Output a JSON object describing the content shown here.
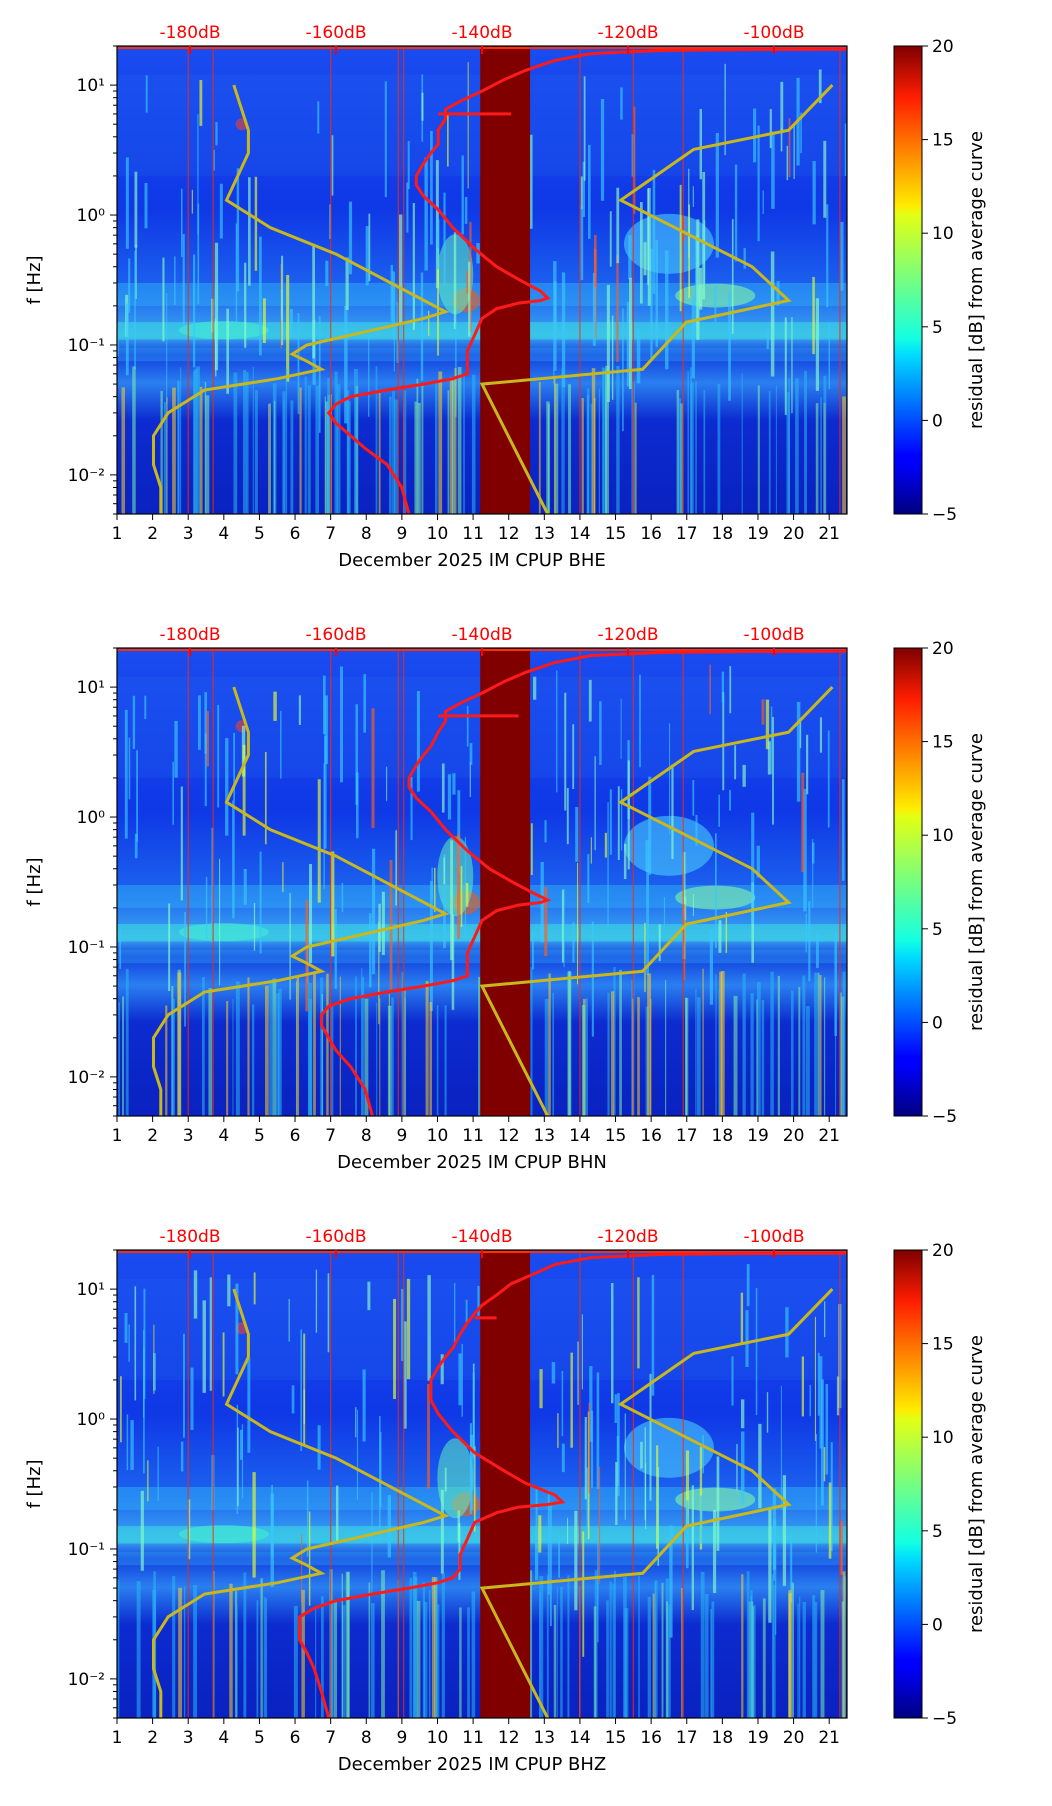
{
  "figure": {
    "kind": "spectrogram residual plots with PSD overlay"
  },
  "colors": {
    "db_axis": "#ff0000",
    "psd_curve": "#ff1a1a",
    "model_curve": "#c8b81e",
    "gap_fill": "#800000",
    "background_low": "#0a2ad8"
  },
  "colorbar": {
    "label": "residual [dB] from average curve",
    "ticks": [
      "20",
      "15",
      "10",
      "5",
      "0",
      "−5"
    ],
    "tick_values": [
      20,
      15,
      10,
      5,
      0,
      -5
    ],
    "range": [
      -5,
      20
    ],
    "colormap": "jet"
  },
  "chart_data": [
    {
      "type": "heatmap",
      "channel": "BHE",
      "xlabel": "December 2025 IM CPUP  BHE",
      "ylabel": "f [Hz]",
      "x_ticks": [
        "1",
        "2",
        "3",
        "4",
        "5",
        "6",
        "7",
        "8",
        "9",
        "10",
        "11",
        "12",
        "13",
        "14",
        "15",
        "16",
        "17",
        "18",
        "19",
        "20",
        "21"
      ],
      "x_range": [
        1,
        21.5
      ],
      "y_ticks": [
        "10¹",
        "10⁰",
        "10⁻¹",
        "10⁻²"
      ],
      "y_tick_exponents": [
        1,
        0,
        -1,
        -2
      ],
      "y_range_hz": [
        0.005,
        20
      ],
      "db_ticks": [
        "-180dB",
        "-160dB",
        "-140dB",
        "-120dB",
        "-100dB"
      ],
      "db_tick_values": [
        -180,
        -160,
        -140,
        -120,
        -100
      ],
      "db_range": [
        -190,
        -90
      ],
      "data_gap_days": [
        11.2,
        12.6
      ],
      "psd_curve": [
        [
          -150,
          0.005
        ],
        [
          -151,
          0.008
        ],
        [
          -153,
          0.012
        ],
        [
          -156,
          0.016
        ],
        [
          -158,
          0.02
        ],
        [
          -160,
          0.025
        ],
        [
          -161,
          0.03
        ],
        [
          -160,
          0.035
        ],
        [
          -158,
          0.04
        ],
        [
          -153,
          0.045
        ],
        [
          -148,
          0.05
        ],
        [
          -144,
          0.055
        ],
        [
          -142,
          0.06
        ],
        [
          -142,
          0.07
        ],
        [
          -142,
          0.09
        ],
        [
          -141,
          0.12
        ],
        [
          -140,
          0.16
        ],
        [
          -138,
          0.19
        ],
        [
          -135,
          0.21
        ],
        [
          -132,
          0.22
        ],
        [
          -131,
          0.23
        ],
        [
          -132,
          0.26
        ],
        [
          -135,
          0.32
        ],
        [
          -138,
          0.4
        ],
        [
          -141,
          0.55
        ],
        [
          -144,
          0.8
        ],
        [
          -146,
          1.1
        ],
        [
          -148,
          1.4
        ],
        [
          -149,
          1.7
        ],
        [
          -149,
          2.0
        ],
        [
          -148,
          2.5
        ],
        [
          -147,
          3.0
        ],
        [
          -146,
          3.5
        ],
        [
          -146,
          4.5
        ],
        [
          -145,
          5.5
        ],
        [
          -145,
          6.5
        ],
        [
          -143,
          7.5
        ],
        [
          -140,
          9
        ],
        [
          -137,
          11
        ],
        [
          -134,
          13
        ],
        [
          -130,
          15.5
        ],
        [
          -125,
          17.5
        ],
        [
          -115,
          18.5
        ],
        [
          -103,
          18.8
        ],
        [
          -90,
          18.9
        ]
      ],
      "psd_spike": {
        "freq_hz": 6.0,
        "db_from": -146,
        "db_to": -136
      },
      "model_curve": [
        [
          -184,
          0.005
        ],
        [
          -184,
          0.008
        ],
        [
          -185,
          0.012
        ],
        [
          -185,
          0.02
        ],
        [
          -183,
          0.03
        ],
        [
          -178,
          0.045
        ],
        [
          -168,
          0.055
        ],
        [
          -162,
          0.065
        ],
        [
          -164,
          0.075
        ],
        [
          -166,
          0.085
        ],
        [
          -164,
          0.1
        ],
        [
          -155,
          0.13
        ],
        [
          -148,
          0.16
        ],
        [
          -145,
          0.18
        ],
        [
          -160,
          0.5
        ],
        [
          -169,
          0.8
        ],
        [
          -175,
          1.3
        ],
        [
          -172,
          3
        ],
        [
          -172,
          4.5
        ],
        [
          -174,
          10
        ],
        [
          -140,
          0.05
        ],
        [
          -131,
          0.005
        ]
      ],
      "model_curve_right": [
        [
          -131,
          0.005
        ],
        [
          -140,
          0.05
        ],
        [
          -118,
          0.065
        ],
        [
          -112,
          0.15
        ],
        [
          -98,
          0.22
        ],
        [
          -103,
          0.4
        ],
        [
          -121,
          1.3
        ],
        [
          -111,
          3.2
        ],
        [
          -98,
          4.5
        ],
        [
          -92,
          10
        ]
      ]
    },
    {
      "type": "heatmap",
      "channel": "BHN",
      "xlabel": "December 2025 IM CPUP  BHN",
      "ylabel": "f [Hz]",
      "x_ticks": [
        "1",
        "2",
        "3",
        "4",
        "5",
        "6",
        "7",
        "8",
        "9",
        "10",
        "11",
        "12",
        "13",
        "14",
        "15",
        "16",
        "17",
        "18",
        "19",
        "20",
        "21"
      ],
      "x_range": [
        1,
        21.5
      ],
      "y_ticks": [
        "10¹",
        "10⁰",
        "10⁻¹",
        "10⁻²"
      ],
      "y_tick_exponents": [
        1,
        0,
        -1,
        -2
      ],
      "y_range_hz": [
        0.005,
        20
      ],
      "db_ticks": [
        "-180dB",
        "-160dB",
        "-140dB",
        "-120dB",
        "-100dB"
      ],
      "db_tick_values": [
        -180,
        -160,
        -140,
        -120,
        -100
      ],
      "db_range": [
        -190,
        -90
      ],
      "data_gap_days": [
        11.2,
        12.6
      ],
      "psd_curve": [
        [
          -155,
          0.005
        ],
        [
          -156,
          0.008
        ],
        [
          -158,
          0.012
        ],
        [
          -160,
          0.016
        ],
        [
          -161,
          0.02
        ],
        [
          -162,
          0.025
        ],
        [
          -162,
          0.03
        ],
        [
          -161,
          0.035
        ],
        [
          -158,
          0.04
        ],
        [
          -153,
          0.045
        ],
        [
          -148,
          0.05
        ],
        [
          -144,
          0.055
        ],
        [
          -142,
          0.06
        ],
        [
          -142,
          0.07
        ],
        [
          -142,
          0.09
        ],
        [
          -141,
          0.12
        ],
        [
          -140,
          0.16
        ],
        [
          -138,
          0.19
        ],
        [
          -135,
          0.21
        ],
        [
          -132,
          0.22
        ],
        [
          -131,
          0.23
        ],
        [
          -133,
          0.26
        ],
        [
          -136,
          0.32
        ],
        [
          -139,
          0.4
        ],
        [
          -142,
          0.55
        ],
        [
          -145,
          0.8
        ],
        [
          -147,
          1.1
        ],
        [
          -149,
          1.4
        ],
        [
          -150,
          1.7
        ],
        [
          -150,
          2.0
        ],
        [
          -149,
          2.5
        ],
        [
          -148,
          3.0
        ],
        [
          -147,
          3.5
        ],
        [
          -146,
          4.5
        ],
        [
          -145,
          5.5
        ],
        [
          -145,
          6.5
        ],
        [
          -143,
          7.5
        ],
        [
          -140,
          9
        ],
        [
          -137,
          11
        ],
        [
          -134,
          13
        ],
        [
          -130,
          15.5
        ],
        [
          -125,
          17.5
        ],
        [
          -115,
          18.5
        ],
        [
          -103,
          18.8
        ],
        [
          -90,
          18.9
        ]
      ],
      "psd_spike": {
        "freq_hz": 6.0,
        "db_from": -146,
        "db_to": -135
      },
      "model_curve": [
        [
          -184,
          0.005
        ],
        [
          -184,
          0.008
        ],
        [
          -185,
          0.012
        ],
        [
          -185,
          0.02
        ],
        [
          -183,
          0.03
        ],
        [
          -178,
          0.045
        ],
        [
          -168,
          0.055
        ],
        [
          -162,
          0.065
        ],
        [
          -164,
          0.075
        ],
        [
          -166,
          0.085
        ],
        [
          -164,
          0.1
        ],
        [
          -155,
          0.13
        ],
        [
          -148,
          0.16
        ],
        [
          -145,
          0.18
        ],
        [
          -160,
          0.5
        ],
        [
          -169,
          0.8
        ],
        [
          -175,
          1.3
        ],
        [
          -172,
          3
        ],
        [
          -172,
          4.5
        ],
        [
          -174,
          10
        ],
        [
          -140,
          0.05
        ],
        [
          -131,
          0.005
        ]
      ],
      "model_curve_right": [
        [
          -131,
          0.005
        ],
        [
          -140,
          0.05
        ],
        [
          -118,
          0.065
        ],
        [
          -112,
          0.15
        ],
        [
          -98,
          0.22
        ],
        [
          -103,
          0.4
        ],
        [
          -121,
          1.3
        ],
        [
          -111,
          3.2
        ],
        [
          -98,
          4.5
        ],
        [
          -92,
          10
        ]
      ]
    },
    {
      "type": "heatmap",
      "channel": "BHZ",
      "xlabel": "December 2025 IM CPUP  BHZ",
      "ylabel": "f [Hz]",
      "x_ticks": [
        "1",
        "2",
        "3",
        "4",
        "5",
        "6",
        "7",
        "8",
        "9",
        "10",
        "11",
        "12",
        "13",
        "14",
        "15",
        "16",
        "17",
        "18",
        "19",
        "20",
        "21"
      ],
      "x_range": [
        1,
        21.5
      ],
      "y_ticks": [
        "10¹",
        "10⁰",
        "10⁻¹",
        "10⁻²"
      ],
      "y_tick_exponents": [
        1,
        0,
        -1,
        -2
      ],
      "y_range_hz": [
        0.005,
        20
      ],
      "db_ticks": [
        "-180dB",
        "-160dB",
        "-140dB",
        "-120dB",
        "-100dB"
      ],
      "db_tick_values": [
        -180,
        -160,
        -140,
        -120,
        -100
      ],
      "db_range": [
        -190,
        -90
      ],
      "data_gap_days": [
        11.2,
        12.6
      ],
      "psd_curve": [
        [
          -161,
          0.005
        ],
        [
          -162,
          0.008
        ],
        [
          -163,
          0.012
        ],
        [
          -164,
          0.016
        ],
        [
          -165,
          0.02
        ],
        [
          -165,
          0.025
        ],
        [
          -165,
          0.03
        ],
        [
          -163,
          0.035
        ],
        [
          -160,
          0.04
        ],
        [
          -155,
          0.045
        ],
        [
          -150,
          0.05
        ],
        [
          -146,
          0.055
        ],
        [
          -144,
          0.06
        ],
        [
          -143,
          0.07
        ],
        [
          -143,
          0.09
        ],
        [
          -142,
          0.12
        ],
        [
          -141,
          0.16
        ],
        [
          -138,
          0.19
        ],
        [
          -135,
          0.21
        ],
        [
          -131,
          0.22
        ],
        [
          -129,
          0.23
        ],
        [
          -130,
          0.26
        ],
        [
          -134,
          0.32
        ],
        [
          -137,
          0.4
        ],
        [
          -141,
          0.55
        ],
        [
          -144,
          0.8
        ],
        [
          -146,
          1.1
        ],
        [
          -147,
          1.4
        ],
        [
          -147,
          1.7
        ],
        [
          -147,
          2.0
        ],
        [
          -146,
          2.5
        ],
        [
          -145,
          3.0
        ],
        [
          -144,
          3.5
        ],
        [
          -143,
          4.5
        ],
        [
          -142,
          5.5
        ],
        [
          -141,
          6.5
        ],
        [
          -140,
          7.5
        ],
        [
          -138,
          9
        ],
        [
          -136,
          11
        ],
        [
          -133,
          13
        ],
        [
          -130,
          15.5
        ],
        [
          -125,
          17.5
        ],
        [
          -115,
          18.5
        ],
        [
          -103,
          18.8
        ],
        [
          -90,
          18.9
        ]
      ],
      "psd_spike": {
        "freq_hz": 6.0,
        "db_from": -141,
        "db_to": -138
      },
      "model_curve": [
        [
          -184,
          0.005
        ],
        [
          -184,
          0.008
        ],
        [
          -185,
          0.012
        ],
        [
          -185,
          0.02
        ],
        [
          -183,
          0.03
        ],
        [
          -178,
          0.045
        ],
        [
          -168,
          0.055
        ],
        [
          -162,
          0.065
        ],
        [
          -164,
          0.075
        ],
        [
          -166,
          0.085
        ],
        [
          -164,
          0.1
        ],
        [
          -155,
          0.13
        ],
        [
          -148,
          0.16
        ],
        [
          -145,
          0.18
        ],
        [
          -160,
          0.5
        ],
        [
          -169,
          0.8
        ],
        [
          -175,
          1.3
        ],
        [
          -172,
          3
        ],
        [
          -172,
          4.5
        ],
        [
          -174,
          10
        ],
        [
          -140,
          0.05
        ],
        [
          -131,
          0.005
        ]
      ],
      "model_curve_right": [
        [
          -131,
          0.005
        ],
        [
          -140,
          0.05
        ],
        [
          -118,
          0.065
        ],
        [
          -112,
          0.15
        ],
        [
          -98,
          0.22
        ],
        [
          -103,
          0.4
        ],
        [
          -121,
          1.3
        ],
        [
          -111,
          3.2
        ],
        [
          -98,
          4.5
        ],
        [
          -92,
          10
        ]
      ]
    }
  ]
}
